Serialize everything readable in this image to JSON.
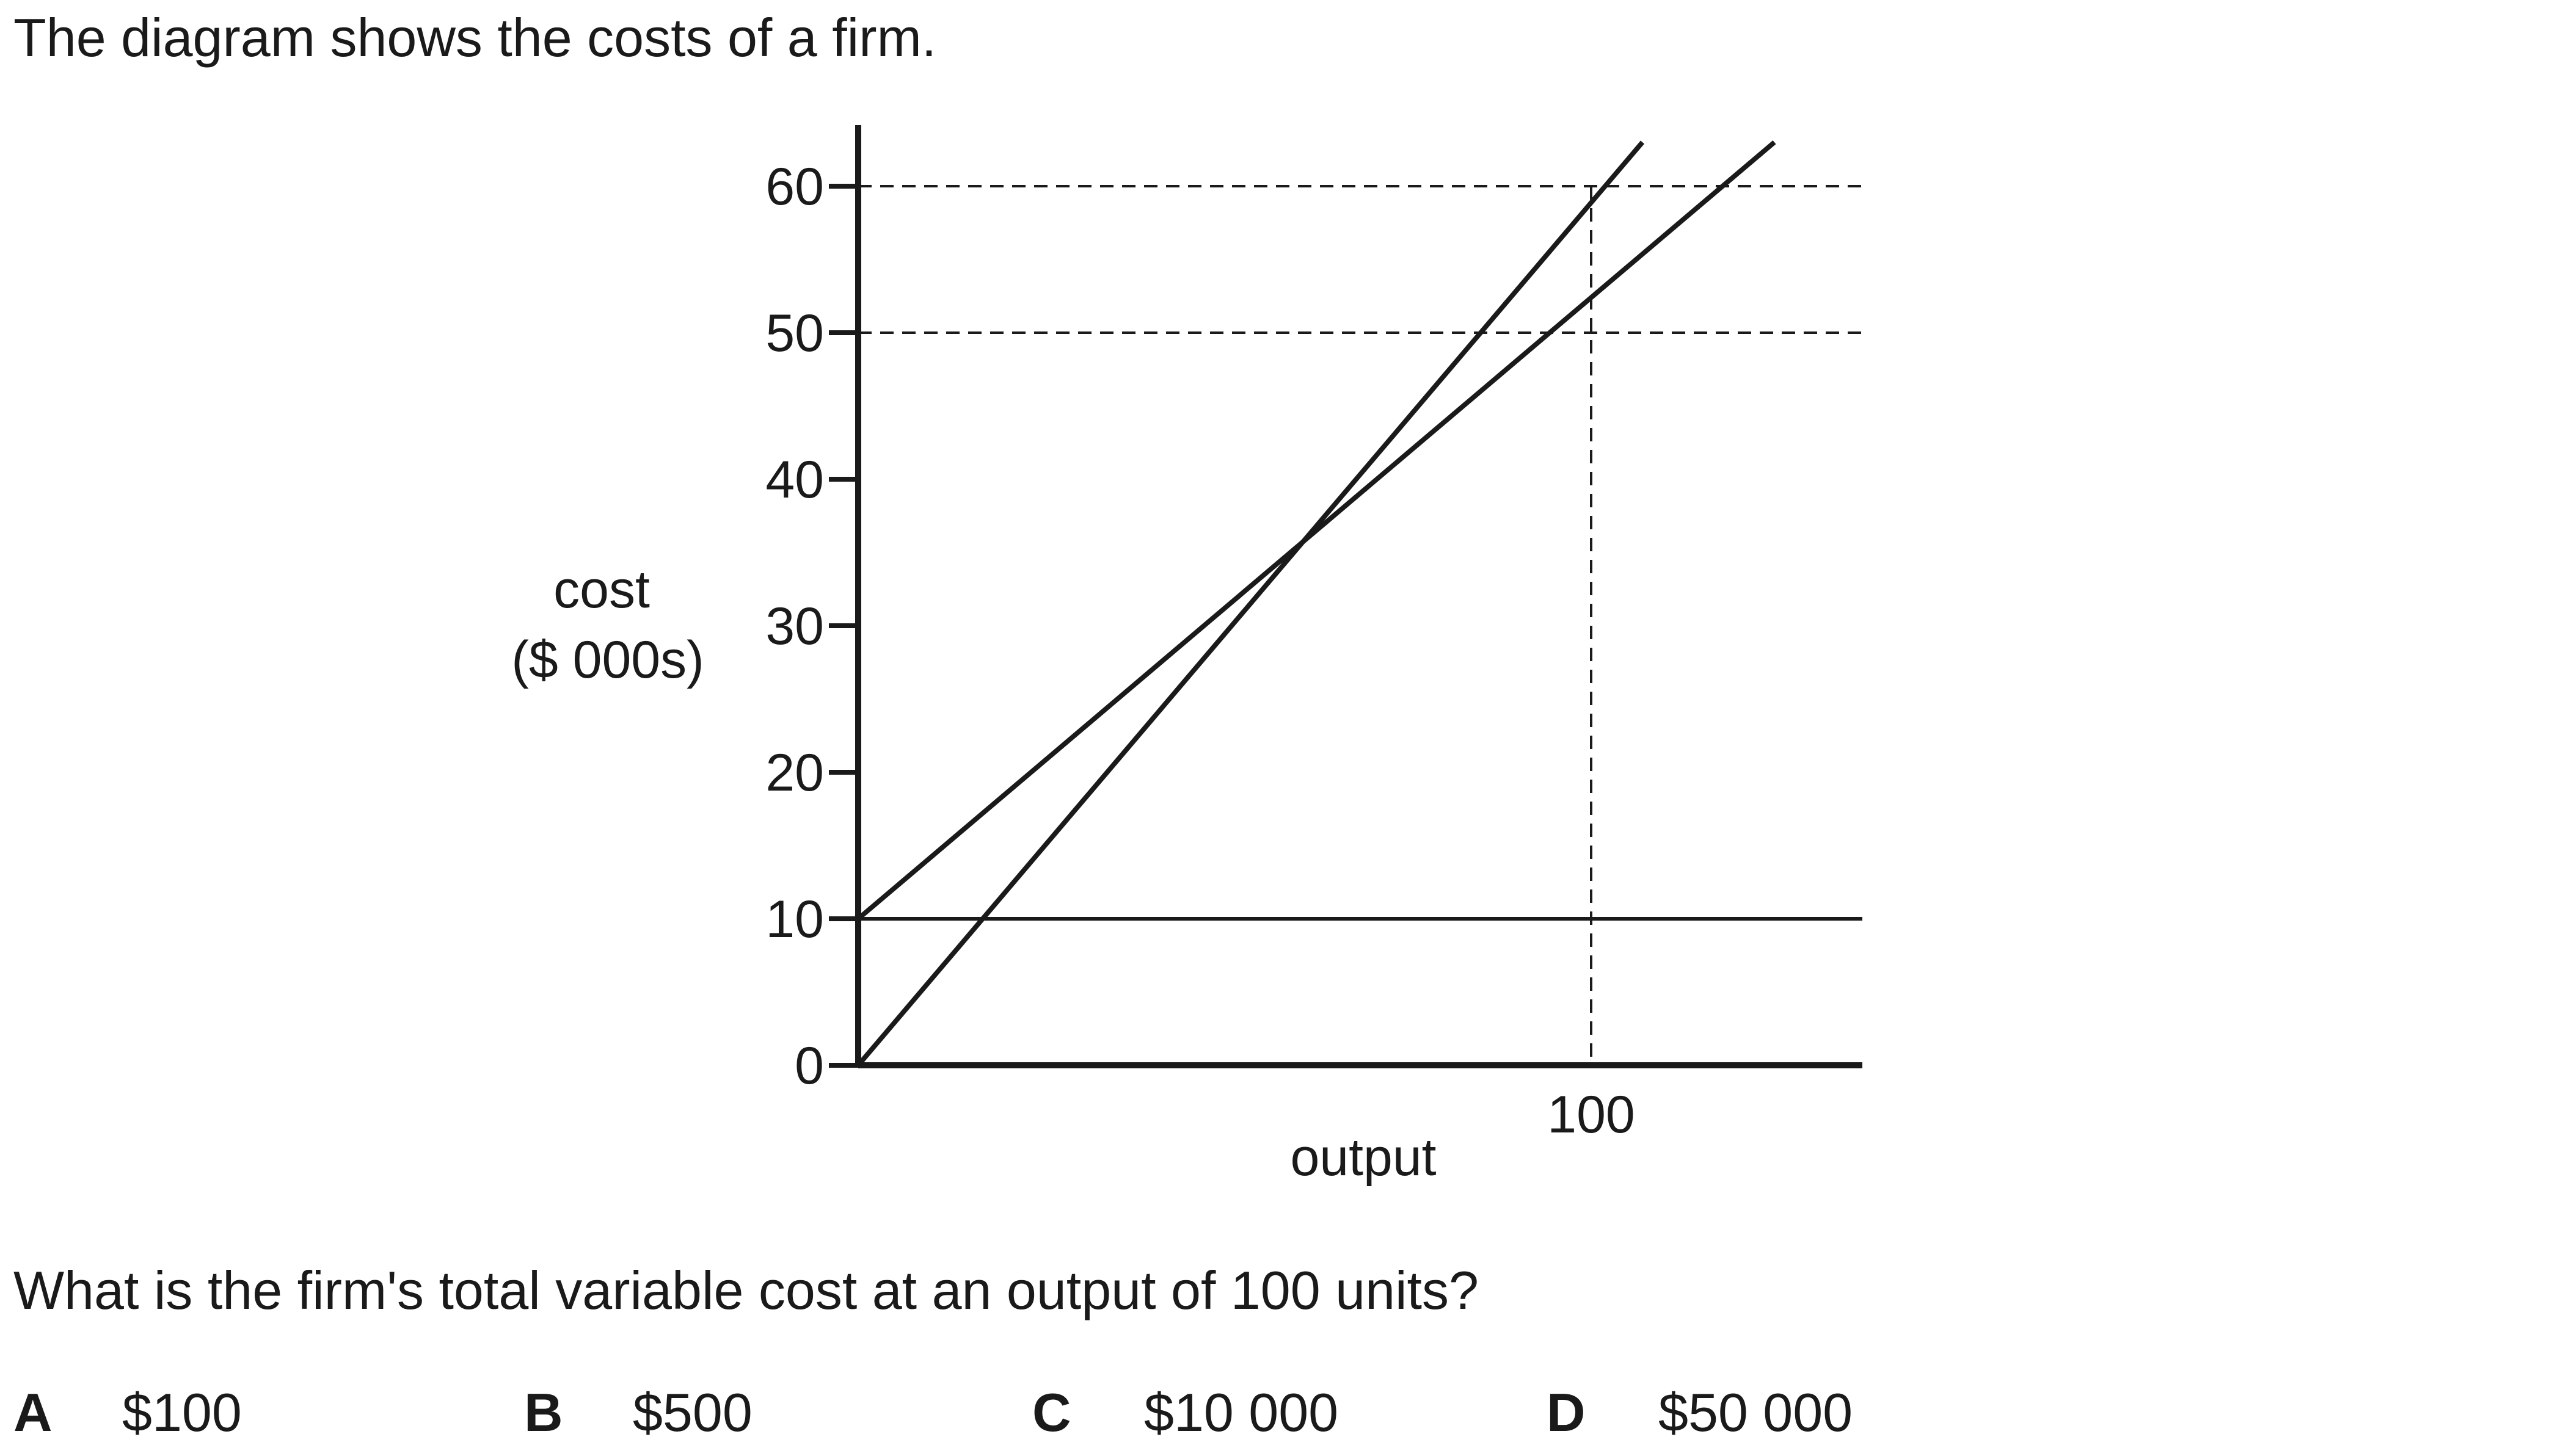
{
  "intro": "The diagram shows the costs of a firm.",
  "chart_data": {
    "type": "line",
    "ylabel_line1": "cost",
    "ylabel_line2": "($ 000s)",
    "xlabel": "output",
    "y_ticks": [
      "0",
      "10",
      "20",
      "30",
      "40",
      "50",
      "60"
    ],
    "y_tick_values": [
      0,
      10,
      20,
      30,
      40,
      50,
      60
    ],
    "x_ticks": [
      "100"
    ],
    "x_tick_values": [
      100
    ],
    "xlim": [
      0,
      137
    ],
    "ylim": [
      0,
      63
    ],
    "series": [
      {
        "x": [
          0,
          137
        ],
        "y": [
          10,
          10
        ]
      },
      {
        "x": [
          0,
          107
        ],
        "y": [
          0,
          63
        ]
      },
      {
        "x": [
          0,
          125
        ],
        "y": [
          10,
          63
        ]
      }
    ],
    "guides": [
      {
        "orientation": "horizontal",
        "y": 60,
        "style": "dashed"
      },
      {
        "orientation": "horizontal",
        "y": 50,
        "style": "dashed"
      },
      {
        "orientation": "vertical",
        "x": 100,
        "style": "dashed"
      }
    ]
  },
  "question": "What is the firm's total variable cost at an output of 100 units?",
  "options": [
    {
      "letter": "A",
      "value": "$100"
    },
    {
      "letter": "B",
      "value": "$500"
    },
    {
      "letter": "C",
      "value": "$10 000"
    },
    {
      "letter": "D",
      "value": "$50 000"
    }
  ]
}
